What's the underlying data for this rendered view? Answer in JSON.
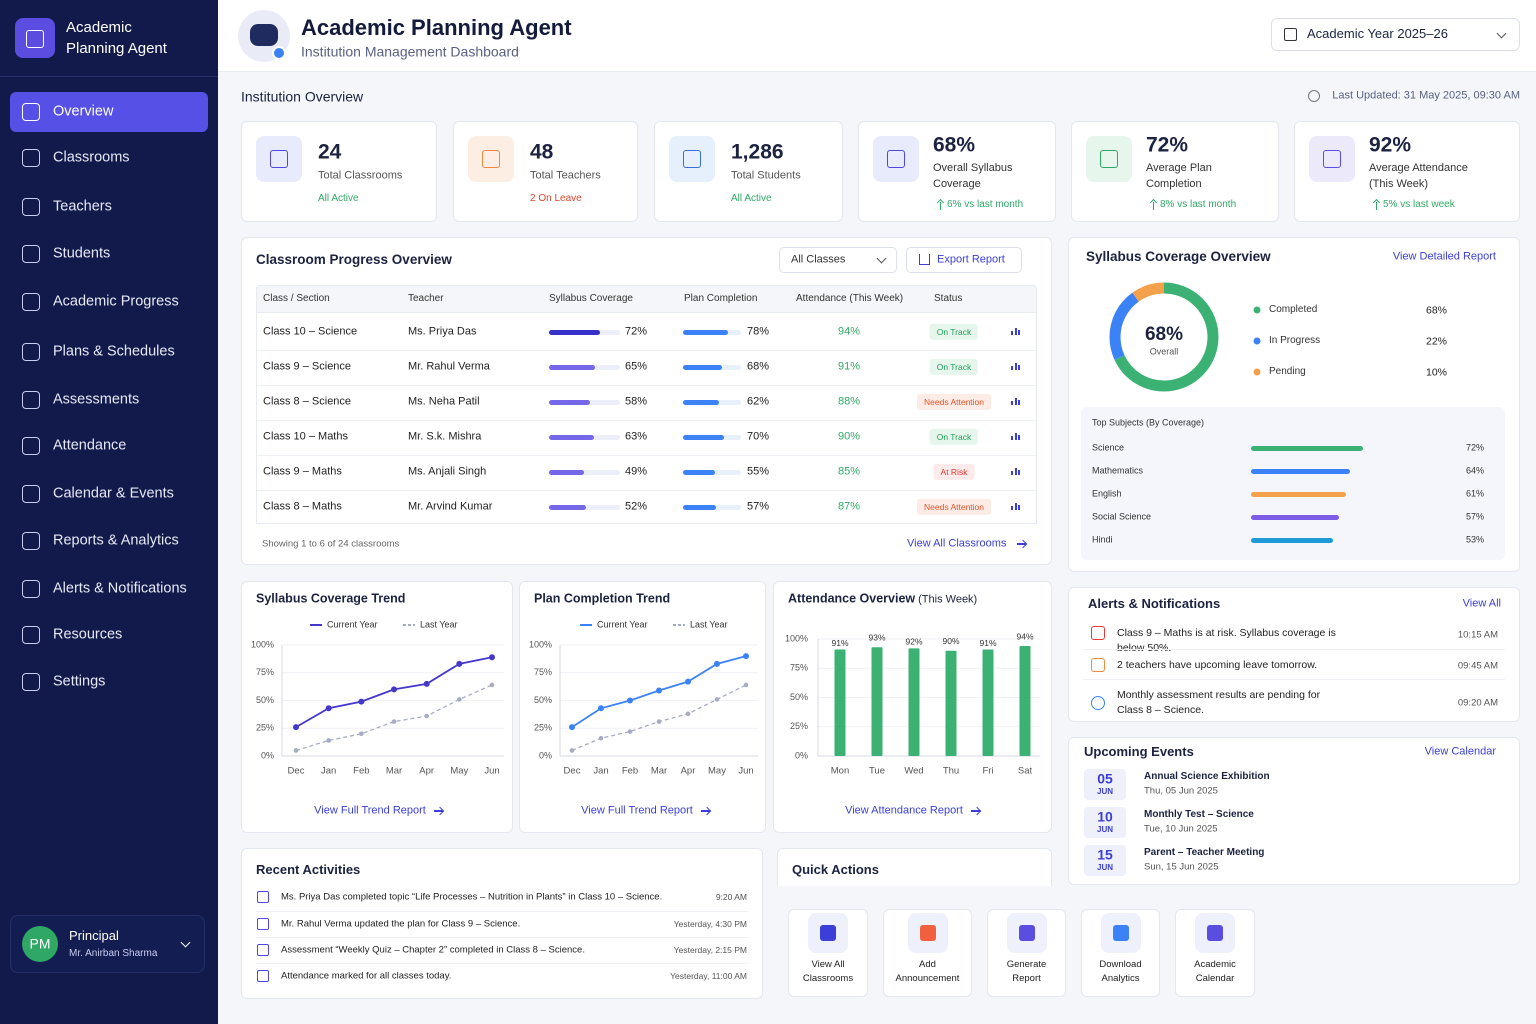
{
  "sidebar": {
    "brand": "Academic Planning Agent",
    "nav": [
      "Overview",
      "Classrooms",
      "Teachers",
      "Students",
      "Academic Progress",
      "Plans & Schedules",
      "Assessments",
      "Attendance",
      "Calendar & Events",
      "Reports & Analytics",
      "Alerts & Notifications",
      "Resources",
      "Settings"
    ],
    "user": {
      "initials": "PM",
      "role": "Principal",
      "name": "Mr. Anirban Sharma"
    }
  },
  "header": {
    "title": "Academic Planning Agent",
    "subtitle": "Institution Management Dashboard",
    "year": "Academic Year 2025–26"
  },
  "overview": {
    "title": "Institution Overview",
    "updated": "Last Updated: 31 May 2025, 09:30 AM",
    "stats": [
      {
        "value": "24",
        "label": "Total Classrooms",
        "note": "All Active"
      },
      {
        "value": "48",
        "label": "Total Teachers",
        "note": "2 On Leave"
      },
      {
        "value": "1,286",
        "label": "Total Students",
        "note": "All Active"
      },
      {
        "value": "68%",
        "label": "Overall Syllabus Coverage",
        "note": "6% vs last month"
      },
      {
        "value": "72%",
        "label": "Average Plan Completion",
        "note": "8% vs last month"
      },
      {
        "value": "92%",
        "label": "Average Attendance (This Week)",
        "note": "5% vs last week"
      }
    ]
  },
  "progress": {
    "title": "Classroom Progress Overview",
    "filter": "All Classes",
    "export": "Export Report",
    "columns": [
      "Class / Section",
      "Teacher",
      "Syllabus Coverage",
      "Plan Completion",
      "Attendance (This Week)",
      "Status"
    ],
    "rows": [
      {
        "class": "Class 10 – Science",
        "teacher": "Ms. Priya Das",
        "syllabus": {
          "value": 72,
          "label": "72%"
        },
        "plan": {
          "value": 78,
          "label": "78%"
        },
        "attendance": "94%",
        "status": "On Track"
      },
      {
        "class": "Class 9 – Science",
        "teacher": "Mr. Rahul Verma",
        "syllabus": {
          "value": 65,
          "label": "65%"
        },
        "plan": {
          "value": 68,
          "label": "68%"
        },
        "attendance": "91%",
        "status": "On Track"
      },
      {
        "class": "Class 8 – Science",
        "teacher": "Ms. Neha Patil",
        "syllabus": {
          "value": 58,
          "label": "58%"
        },
        "plan": {
          "value": 62,
          "label": "62%"
        },
        "attendance": "88%",
        "status": "Needs Attention"
      },
      {
        "class": "Class 10 – Maths",
        "teacher": "Mr. S.k. Mishra",
        "syllabus": {
          "value": 63,
          "label": "63%"
        },
        "plan": {
          "value": 70,
          "label": "70%"
        },
        "attendance": "90%",
        "status": "On Track"
      },
      {
        "class": "Class 9 – Maths",
        "teacher": "Ms. Anjali Singh",
        "syllabus": {
          "value": 49,
          "label": "49%"
        },
        "plan": {
          "value": 55,
          "label": "55%"
        },
        "attendance": "85%",
        "status": "At Risk"
      },
      {
        "class": "Class 8 – Maths",
        "teacher": "Mr. Arvind Kumar",
        "syllabus": {
          "value": 52,
          "label": "52%"
        },
        "plan": {
          "value": 57,
          "label": "57%"
        },
        "attendance": "87%",
        "status": "Needs Attention"
      }
    ],
    "footer": "Showing 1 to 6 of 24 classrooms",
    "link": "View All Classrooms"
  },
  "syllabus_overview": {
    "title": "Syllabus Coverage Overview",
    "link": "View Detailed Report",
    "center": "68%",
    "center_label": "Overall",
    "items": [
      {
        "name": "Completed",
        "value": 68,
        "label": "68%",
        "color": "#3bb273"
      },
      {
        "name": "In Progress",
        "value": 22,
        "label": "22%",
        "color": "#3b82f6"
      },
      {
        "name": "Pending",
        "value": 10,
        "label": "10%",
        "color": "#f5a04a"
      }
    ],
    "subjects_title": "Top Subjects (By Coverage)",
    "subjects": [
      {
        "name": "Science",
        "value": 72,
        "label": "72%",
        "color": "#3bb273"
      },
      {
        "name": "Mathematics",
        "value": 64,
        "label": "64%",
        "color": "#3b82f6"
      },
      {
        "name": "English",
        "value": 61,
        "label": "61%",
        "color": "#f5a04a"
      },
      {
        "name": "Social Science",
        "value": 57,
        "label": "57%",
        "color": "#7c5ce6"
      },
      {
        "name": "Hindi",
        "value": 53,
        "label": "53%",
        "color": "#1e9bd7"
      }
    ]
  },
  "chart_data": [
    {
      "type": "line",
      "title": "Syllabus Coverage Trend",
      "categories": [
        "Dec",
        "Jan",
        "Feb",
        "Mar",
        "Apr",
        "May",
        "Jun"
      ],
      "series": [
        {
          "name": "Current Year",
          "color": "#4338ca",
          "dashed": false,
          "values": [
            26,
            43,
            49,
            60,
            65,
            83,
            89
          ]
        },
        {
          "name": "Last Year",
          "color": "#a7abc6",
          "dashed": true,
          "values": [
            5,
            14,
            20,
            31,
            36,
            51,
            64
          ]
        }
      ],
      "ylim": [
        0,
        100
      ],
      "yticks": [
        {
          "value": 0,
          "label": "0%"
        },
        {
          "value": 25,
          "label": "25%"
        },
        {
          "value": 50,
          "label": "50%"
        },
        {
          "value": 75,
          "label": "75%"
        },
        {
          "value": 100,
          "label": "100%"
        }
      ],
      "link": "View Full Trend Report"
    },
    {
      "type": "line",
      "title": "Plan Completion Trend",
      "categories": [
        "Dec",
        "Jan",
        "Feb",
        "Mar",
        "Apr",
        "May",
        "Jun"
      ],
      "series": [
        {
          "name": "Current Year",
          "color": "#3b82f6",
          "dashed": false,
          "values": [
            26,
            43,
            50,
            59,
            67,
            83,
            90
          ]
        },
        {
          "name": "Last Year",
          "color": "#a7abc6",
          "dashed": true,
          "values": [
            5,
            16,
            22,
            31,
            38,
            51,
            64
          ]
        }
      ],
      "ylim": [
        0,
        100
      ],
      "yticks": [
        {
          "value": 0,
          "label": "0%"
        },
        {
          "value": 25,
          "label": "25%"
        },
        {
          "value": 50,
          "label": "50%"
        },
        {
          "value": 75,
          "label": "75%"
        },
        {
          "value": 100,
          "label": "100%"
        }
      ],
      "link": "View Full Trend Report"
    },
    {
      "type": "bar",
      "title": "Attendance Overview",
      "subtitle": "(This Week)",
      "categories": [
        "Mon",
        "Tue",
        "Wed",
        "Thu",
        "Fri",
        "Sat"
      ],
      "values": [
        91,
        93,
        92,
        90,
        91,
        94
      ],
      "value_labels": [
        "91%",
        "93%",
        "92%",
        "90%",
        "91%",
        "94%"
      ],
      "color": "#3bb273",
      "ylim": [
        0,
        100
      ],
      "yticks": [
        {
          "value": 0,
          "label": "0%"
        },
        {
          "value": 25,
          "label": "25%"
        },
        {
          "value": 50,
          "label": "50%"
        },
        {
          "value": 75,
          "label": "75%"
        },
        {
          "value": 100,
          "label": "100%"
        }
      ],
      "link": "View Attendance Report"
    }
  ],
  "alerts": {
    "title": "Alerts & Notifications",
    "link": "View All",
    "items": [
      {
        "text": "Class 9 – Maths is at risk. Syllabus coverage is below 50%.",
        "time": "10:15 AM"
      },
      {
        "text": "2 teachers have upcoming leave tomorrow.",
        "time": "09:45 AM"
      },
      {
        "text": "Monthly assessment results are pending for Class 8 – Science.",
        "time": "09:20 AM"
      }
    ]
  },
  "events": {
    "title": "Upcoming Events",
    "link": "View Calendar",
    "items": [
      {
        "day": "05",
        "month": "JUN",
        "title": "Annual Science Exhibition",
        "date": "Thu, 05 Jun 2025"
      },
      {
        "day": "10",
        "month": "JUN",
        "title": "Monthly Test – Science",
        "date": "Tue, 10 Jun 2025"
      },
      {
        "day": "15",
        "month": "JUN",
        "title": "Parent – Teacher Meeting",
        "date": "Sun, 15 Jun 2025"
      }
    ]
  },
  "activities": {
    "title": "Recent Activities",
    "items": [
      {
        "text": "Ms. Priya Das completed topic “Life Processes – Nutrition in Plants” in Class 10 – Science.",
        "time": "9:20 AM"
      },
      {
        "text": "Mr. Rahul Verma updated the plan for Class 9 – Science.",
        "time": "Yesterday, 4:30 PM"
      },
      {
        "text": "Assessment “Weekly Quiz – Chapter 2” completed in Class 8 – Science.",
        "time": "Yesterday, 2:15 PM"
      },
      {
        "text": "Attendance marked for all classes today.",
        "time": "Yesterday, 11:00 AM"
      }
    ]
  },
  "quick_actions": {
    "title": "Quick Actions",
    "items": [
      "View All Classrooms",
      "Add Announcement",
      "Generate Report",
      "Download Analytics",
      "Academic Calendar"
    ]
  }
}
